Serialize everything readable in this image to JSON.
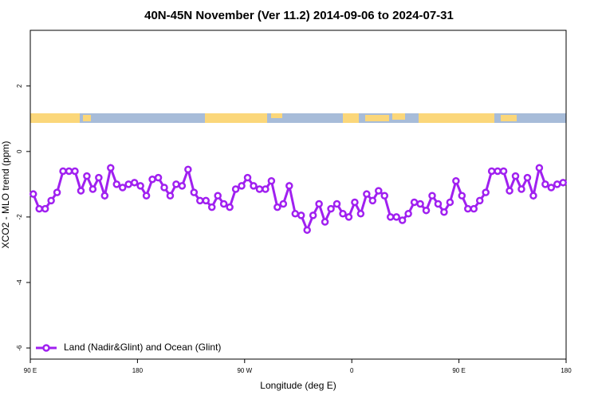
{
  "chart_data": {
    "type": "line",
    "title": "40N-45N November (Ver 11.2)   2014-09-06 to 2024-07-31",
    "x_label": "Longitude (deg E)",
    "y_label": "XCO2 - MLO trend (ppm)",
    "x": [
      92.5,
      97.5,
      102.5,
      107.5,
      112.5,
      117.5,
      122.5,
      127.5,
      132.5,
      137.5,
      142.5,
      147.5,
      152.5,
      157.5,
      162.5,
      167.5,
      172.5,
      177.5,
      182.5,
      187.5,
      192.5,
      197.5,
      202.5,
      207.5,
      212.5,
      217.5,
      222.5,
      227.5,
      232.5,
      237.5,
      242.5,
      247.5,
      252.5,
      257.5,
      262.5,
      267.5,
      272.5,
      277.5,
      282.5,
      287.5,
      292.5,
      297.5,
      302.5,
      307.5,
      312.5,
      317.5,
      322.5,
      327.5,
      332.5,
      337.5,
      342.5,
      347.5,
      352.5,
      357.5,
      362.5,
      367.5,
      372.5,
      377.5,
      382.5,
      387.5,
      392.5,
      397.5,
      402.5,
      407.5,
      412.5,
      417.5,
      422.5,
      427.5,
      432.5,
      437.5,
      442.5,
      447.5,
      452.5,
      457.5,
      462.5,
      467.5,
      472.5,
      477.5,
      482.5,
      487.5,
      492.5,
      497.5,
      502.5,
      507.5,
      512.5,
      517.5,
      522.5,
      527.5,
      532.5,
      537.5
    ],
    "series": [
      {
        "name": "Land (Nadir&Glint) and Ocean (Glint)",
        "color": "#a020f0",
        "values": [
          -1.3,
          -1.75,
          -1.75,
          -1.5,
          -1.25,
          -0.6,
          -0.6,
          -0.6,
          -1.2,
          -0.75,
          -1.15,
          -0.8,
          -1.35,
          -0.5,
          -1.0,
          -1.1,
          -1.0,
          -0.95,
          -1.05,
          -1.35,
          -0.85,
          -0.8,
          -1.1,
          -1.35,
          -1.0,
          -1.05,
          -0.55,
          -1.25,
          -1.5,
          -1.5,
          -1.7,
          -1.35,
          -1.6,
          -1.7,
          -1.15,
          -1.05,
          -0.8,
          -1.05,
          -1.15,
          -1.15,
          -0.9,
          -1.7,
          -1.6,
          -1.05,
          -1.9,
          -1.95,
          -2.4,
          -1.95,
          -1.6,
          -2.15,
          -1.75,
          -1.6,
          -1.9,
          -2.0,
          -1.55,
          -1.9,
          -1.3,
          -1.5,
          -1.2,
          -1.35,
          -2.0,
          -2.0,
          -2.1,
          -1.9,
          -1.55,
          -1.6,
          -1.8,
          -1.35,
          -1.6,
          -1.85,
          -1.55,
          -0.9,
          -1.35,
          -1.75,
          -1.75,
          -1.5,
          -1.25,
          -0.6,
          -0.6,
          -0.6,
          -1.2,
          -0.75,
          -1.15,
          -0.8,
          -1.35,
          -0.5,
          -1.0,
          -1.1,
          -1.0,
          -0.95
        ]
      }
    ],
    "xlim": [
      90,
      540
    ],
    "xticks": [
      {
        "value": 90,
        "label": "90 E"
      },
      180,
      {
        "value": 270,
        "label": "90 W"
      },
      {
        "value": 360,
        "label": "0"
      },
      {
        "value": 450,
        "label": "90 E"
      },
      {
        "value": 540,
        "label": "180"
      }
    ],
    "ylim": [
      -6.34,
      3.7
    ],
    "yticks": [
      -6,
      -4,
      -2,
      0,
      2
    ],
    "legend": "bottom-left"
  }
}
